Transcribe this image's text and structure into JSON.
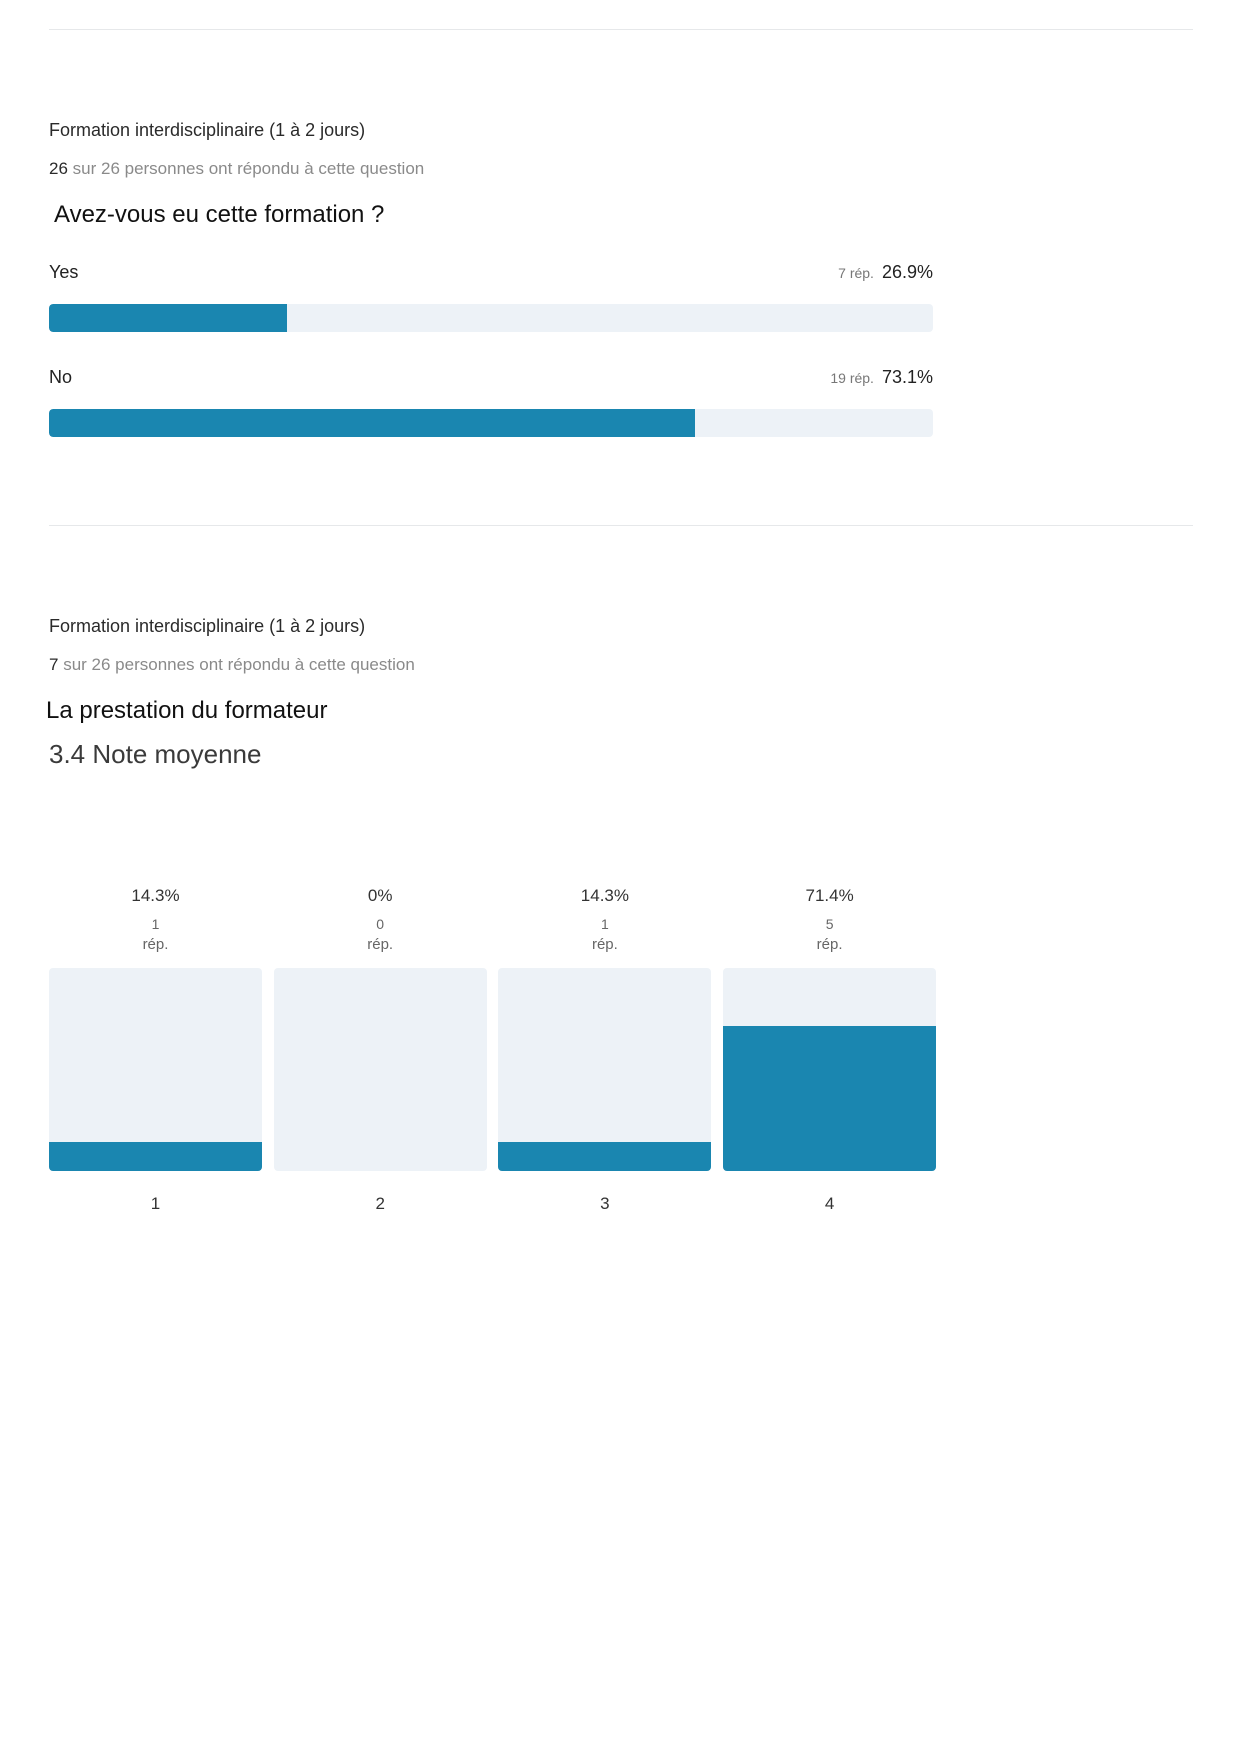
{
  "colors": {
    "bar_fill": "#1a86b0",
    "bar_track": "#edf2f7",
    "divider": "#e6e8ea"
  },
  "section1": {
    "category": "Formation interdisciplinaire (1 à 2 jours)",
    "answered": "26",
    "answered_rest": " sur 26 personnes ont répondu à cette question",
    "question": "Avez-vous eu cette formation ?",
    "options": [
      {
        "label": "Yes",
        "rep": "7 rép.",
        "pct": "26.9%",
        "fraction": 0.269
      },
      {
        "label": "No",
        "rep": "19 rép.",
        "pct": "73.1%",
        "fraction": 0.731
      }
    ]
  },
  "section2": {
    "category": "Formation interdisciplinaire (1 à 2 jours)",
    "answered": "7",
    "answered_rest": " sur 26 personnes ont répondu à cette question",
    "question": "La prestation du formateur",
    "average": "3.4 Note moyenne",
    "rep_label": "rép."
  },
  "chart_data": {
    "type": "bar",
    "categories": [
      "1",
      "2",
      "3",
      "4"
    ],
    "values": [
      14.3,
      0,
      14.3,
      71.4
    ],
    "value_labels": [
      "14.3%",
      "0%",
      "14.3%",
      "71.4%"
    ],
    "counts": [
      "1",
      "0",
      "1",
      "5"
    ],
    "ylim": [
      0,
      100
    ],
    "grid": false
  }
}
